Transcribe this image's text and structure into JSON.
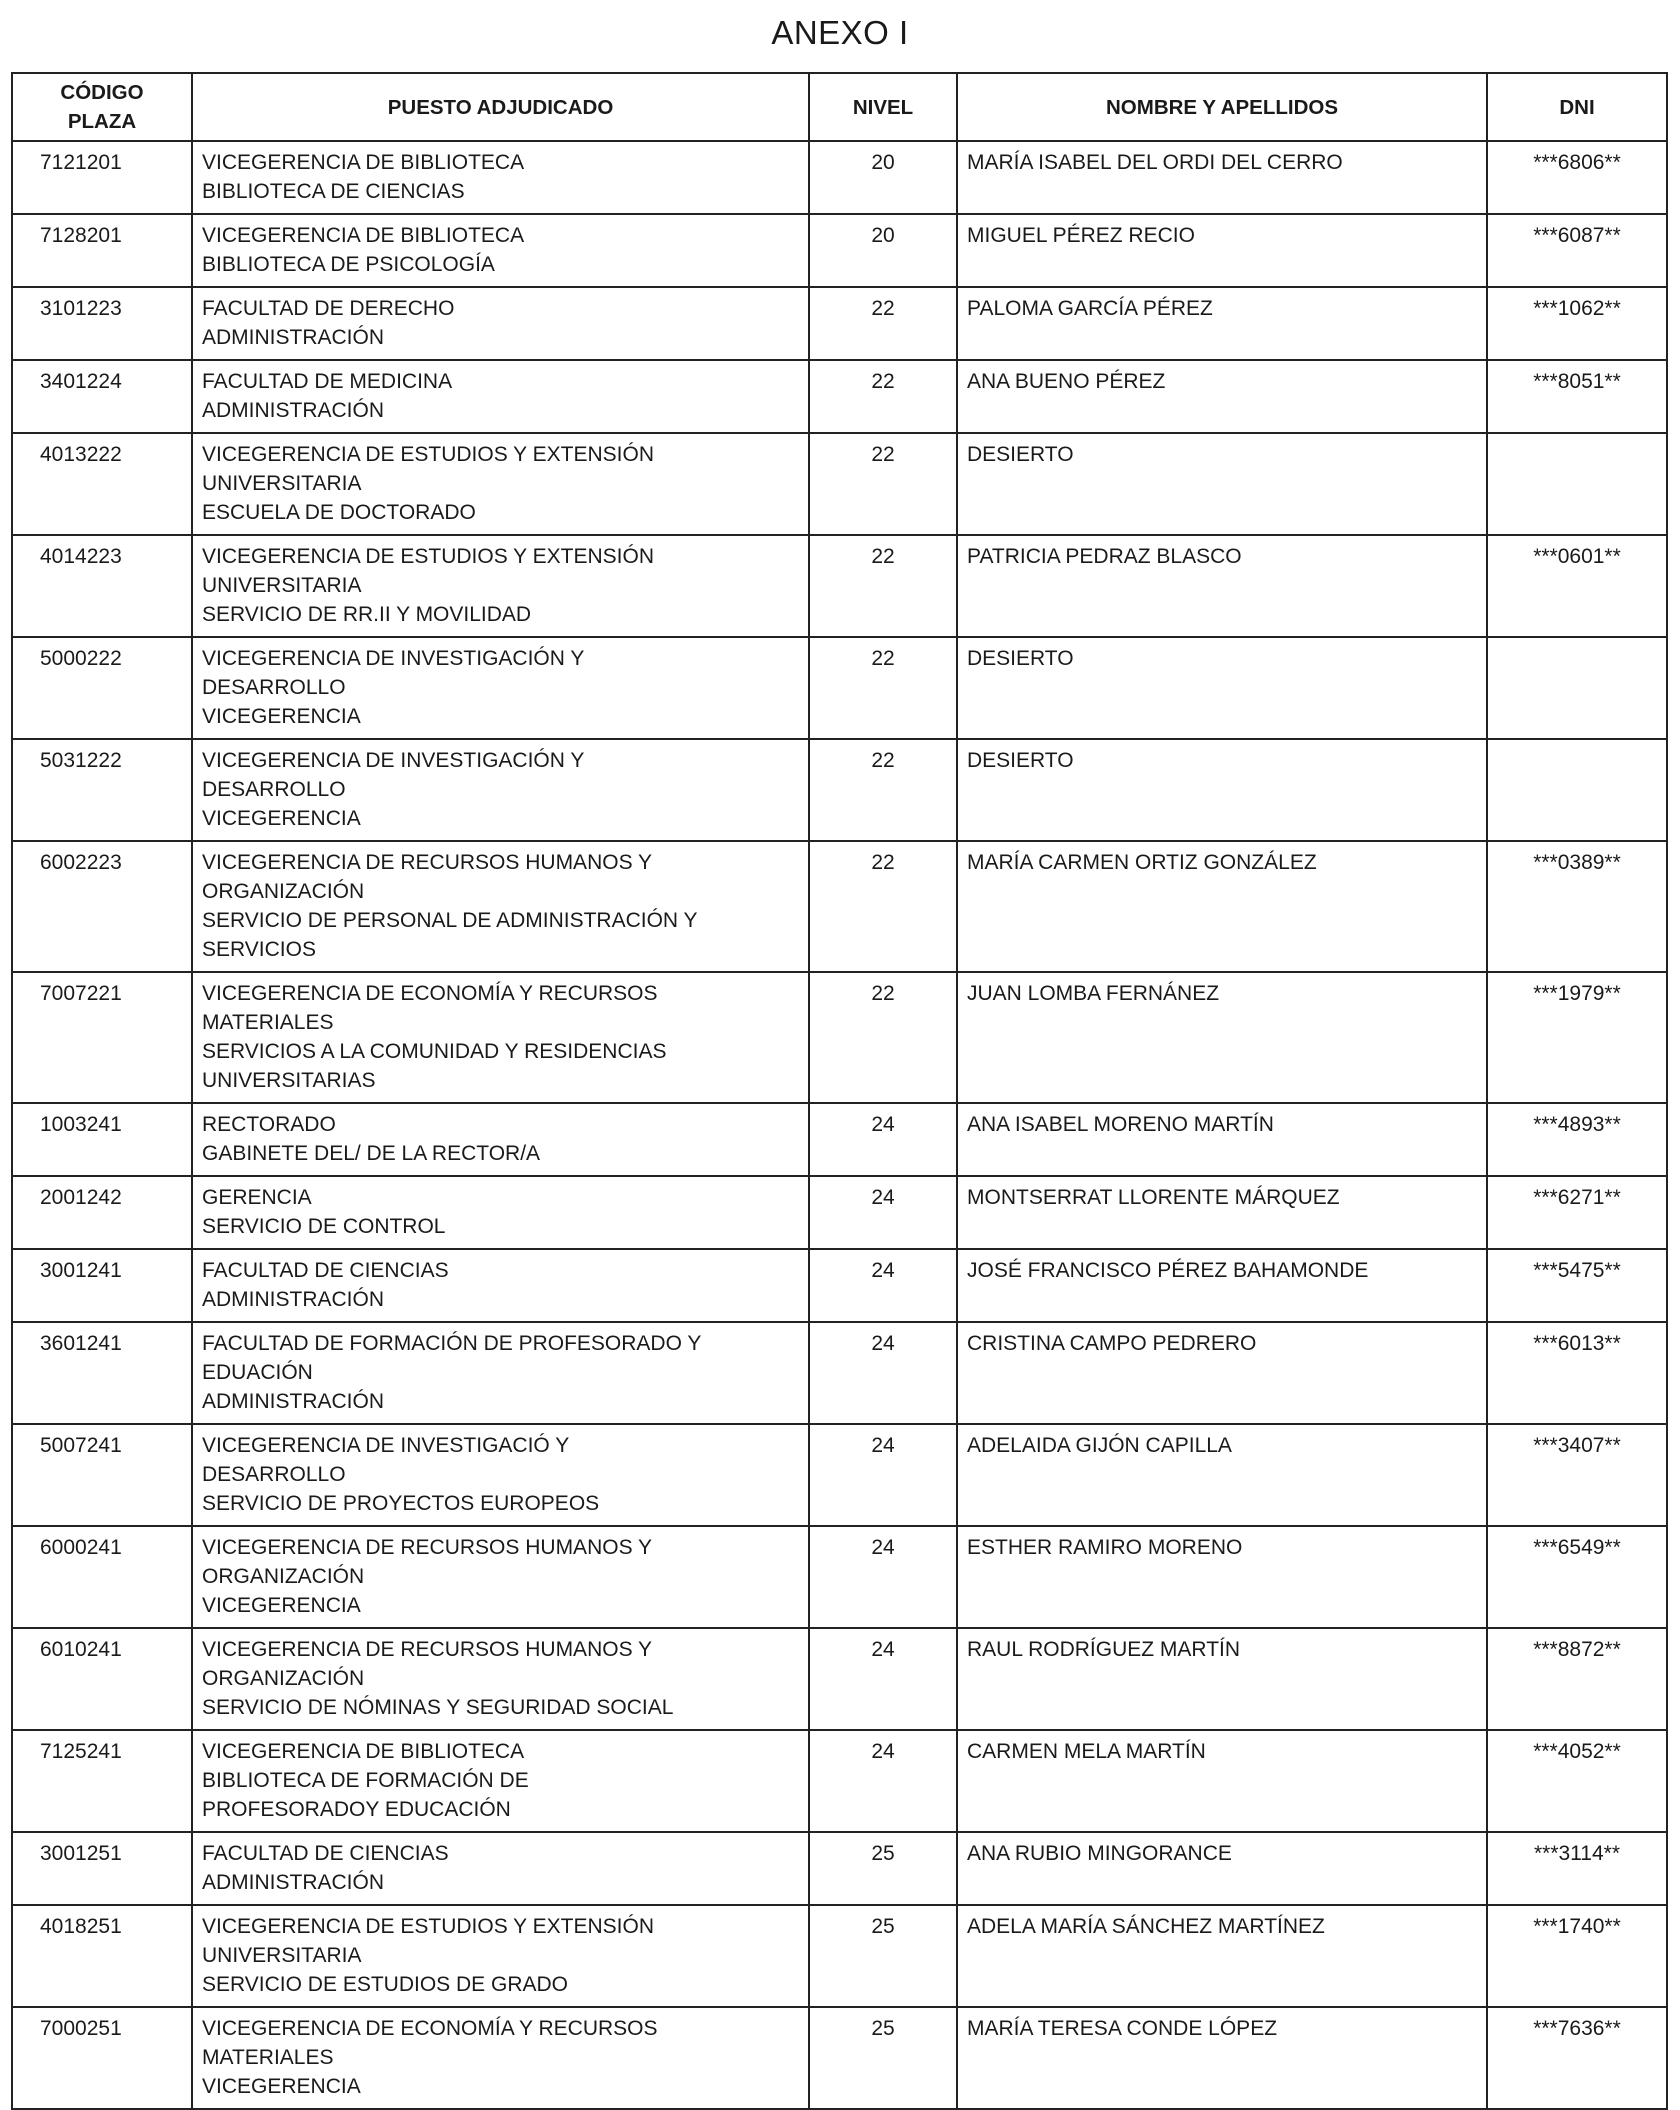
{
  "title": "ANEXO I",
  "headers": {
    "codigo_line1": "CÓDIGO",
    "codigo_line2": "PLAZA",
    "puesto": "PUESTO ADJUDICADO",
    "nivel": "NIVEL",
    "nombre": "NOMBRE Y APELLIDOS",
    "dni": "DNI"
  },
  "rows": [
    {
      "codigo": "7121201",
      "puesto": [
        "VICEGERENCIA DE BIBLIOTECA",
        "BIBLIOTECA DE CIENCIAS"
      ],
      "nivel": "20",
      "nombre": "MARÍA ISABEL DEL ORDI DEL CERRO",
      "dni": "***6806**"
    },
    {
      "codigo": "7128201",
      "puesto": [
        "VICEGERENCIA DE BIBLIOTECA",
        "BIBLIOTECA DE PSICOLOGÍA"
      ],
      "nivel": "20",
      "nombre": "MIGUEL PÉREZ RECIO",
      "dni": "***6087**"
    },
    {
      "codigo": "3101223",
      "puesto": [
        "FACULTAD DE DERECHO",
        "ADMINISTRACIÓN"
      ],
      "nivel": "22",
      "nombre": "PALOMA GARCÍA PÉREZ",
      "dni": "***1062**"
    },
    {
      "codigo": "3401224",
      "puesto": [
        "FACULTAD DE MEDICINA",
        "ADMINISTRACIÓN"
      ],
      "nivel": "22",
      "nombre": "ANA BUENO PÉREZ",
      "dni": "***8051**"
    },
    {
      "codigo": "4013222",
      "puesto": [
        "VICEGERENCIA DE ESTUDIOS Y EXTENSIÓN",
        "UNIVERSITARIA",
        "ESCUELA DE DOCTORADO"
      ],
      "nivel": "22",
      "nombre": "DESIERTO",
      "dni": ""
    },
    {
      "codigo": "4014223",
      "puesto": [
        "VICEGERENCIA DE ESTUDIOS Y EXTENSIÓN",
        "UNIVERSITARIA",
        "SERVICIO DE RR.II Y MOVILIDAD"
      ],
      "nivel": "22",
      "nombre": "PATRICIA PEDRAZ BLASCO",
      "dni": "***0601**"
    },
    {
      "codigo": "5000222",
      "puesto": [
        "VICEGERENCIA DE INVESTIGACIÓN Y",
        "DESARROLLO",
        "VICEGERENCIA"
      ],
      "nivel": "22",
      "nombre": "DESIERTO",
      "dni": ""
    },
    {
      "codigo": "5031222",
      "puesto": [
        "VICEGERENCIA DE INVESTIGACIÓN Y",
        "DESARROLLO",
        "VICEGERENCIA"
      ],
      "nivel": "22",
      "nombre": "DESIERTO",
      "dni": ""
    },
    {
      "codigo": "6002223",
      "puesto": [
        "VICEGERENCIA DE RECURSOS HUMANOS Y",
        "ORGANIZACIÓN",
        "SERVICIO DE PERSONAL DE ADMINISTRACIÓN Y",
        "SERVICIOS"
      ],
      "nivel": "22",
      "nombre": "MARÍA CARMEN ORTIZ GONZÁLEZ",
      "dni": "***0389**"
    },
    {
      "codigo": "7007221",
      "puesto": [
        "VICEGERENCIA DE ECONOMÍA Y RECURSOS",
        "MATERIALES",
        "SERVICIOS A LA COMUNIDAD Y RESIDENCIAS",
        "UNIVERSITARIAS"
      ],
      "nivel": "22",
      "nombre": "JUAN LOMBA FERNÁNEZ",
      "dni": "***1979**"
    },
    {
      "codigo": "1003241",
      "puesto": [
        "RECTORADO",
        "GABINETE DEL/ DE LA RECTOR/A"
      ],
      "nivel": "24",
      "nombre": "ANA ISABEL MORENO MARTÍN",
      "dni": "***4893**"
    },
    {
      "codigo": "2001242",
      "puesto": [
        "GERENCIA",
        "SERVICIO DE CONTROL"
      ],
      "nivel": "24",
      "nombre": "MONTSERRAT LLORENTE MÁRQUEZ",
      "dni": "***6271**"
    },
    {
      "codigo": "3001241",
      "puesto": [
        "FACULTAD DE CIENCIAS",
        "ADMINISTRACIÓN"
      ],
      "nivel": "24",
      "nombre": "JOSÉ FRANCISCO PÉREZ BAHAMONDE",
      "dni": "***5475**"
    },
    {
      "codigo": "3601241",
      "puesto": [
        "FACULTAD DE FORMACIÓN DE PROFESORADO Y",
        "EDUACIÓN",
        "ADMINISTRACIÓN"
      ],
      "nivel": "24",
      "nombre": "CRISTINA CAMPO PEDRERO",
      "dni": "***6013**"
    },
    {
      "codigo": "5007241",
      "puesto": [
        "VICEGERENCIA DE INVESTIGACIÓ Y",
        "DESARROLLO",
        "SERVICIO DE PROYECTOS EUROPEOS"
      ],
      "nivel": "24",
      "nombre": "ADELAIDA GIJÓN CAPILLA",
      "dni": "***3407**"
    },
    {
      "codigo": "6000241",
      "puesto": [
        "VICEGERENCIA DE RECURSOS HUMANOS Y",
        "ORGANIZACIÓN",
        "VICEGERENCIA"
      ],
      "nivel": "24",
      "nombre": "ESTHER RAMIRO MORENO",
      "dni": "***6549**"
    },
    {
      "codigo": "6010241",
      "puesto": [
        "VICEGERENCIA DE RECURSOS HUMANOS Y",
        "ORGANIZACIÓN",
        "SERVICIO DE NÓMINAS Y SEGURIDAD SOCIAL"
      ],
      "nivel": "24",
      "nombre": "RAUL RODRÍGUEZ MARTÍN",
      "dni": "***8872**"
    },
    {
      "codigo": "7125241",
      "puesto": [
        "VICEGERENCIA DE BIBLIOTECA",
        "BIBLIOTECA DE FORMACIÓN DE",
        "PROFESORADOY EDUCACIÓN"
      ],
      "nivel": "24",
      "nombre": "CARMEN MELA MARTÍN",
      "dni": "***4052**"
    },
    {
      "codigo": "3001251",
      "puesto": [
        "FACULTAD DE CIENCIAS",
        "ADMINISTRACIÓN"
      ],
      "nivel": "25",
      "nombre": "ANA RUBIO MINGORANCE",
      "dni": "***3114**"
    },
    {
      "codigo": "4018251",
      "puesto": [
        "VICEGERENCIA DE ESTUDIOS Y EXTENSIÓN",
        "UNIVERSITARIA",
        "SERVICIO DE ESTUDIOS DE GRADO"
      ],
      "nivel": "25",
      "nombre": "ADELA MARÍA SÁNCHEZ MARTÍNEZ",
      "dni": "***1740**"
    },
    {
      "codigo": "7000251",
      "puesto": [
        "VICEGERENCIA DE ECONOMÍA Y RECURSOS",
        "MATERIALES",
        "VICEGERENCIA"
      ],
      "nivel": "25",
      "nombre": "MARÍA TERESA CONDE LÓPEZ",
      "dni": "***7636**"
    }
  ]
}
